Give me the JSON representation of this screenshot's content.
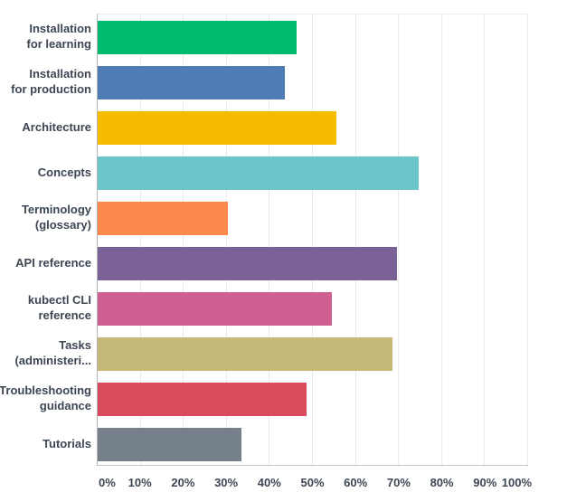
{
  "chart_data": {
    "type": "bar",
    "orientation": "horizontal",
    "title": "",
    "xlabel": "",
    "ylabel": "",
    "categories": [
      "Installation\nfor learning",
      "Installation\nfor production",
      "Architecture",
      "Concepts",
      "Terminology\n(glossary)",
      "API reference",
      "kubectl CLI\nreference",
      "Tasks\n(administeri...",
      "Troubleshooting\nguidance",
      "Tutorials"
    ],
    "values": [
      46.3,
      43.5,
      55.5,
      74.5,
      30.3,
      69.5,
      54.5,
      68.5,
      48.5,
      33.3
    ],
    "colors": [
      "#00bb6e",
      "#4f7db3",
      "#f6bd00",
      "#6ac6c9",
      "#fc8a4d",
      "#7a6296",
      "#ce5f90",
      "#c6b878",
      "#d94a5c",
      "#75808b"
    ],
    "x_ticks": [
      "0%",
      "10%",
      "20%",
      "30%",
      "40%",
      "50%",
      "60%",
      "70%",
      "80%",
      "90%",
      "100%"
    ],
    "xlim": [
      0,
      100
    ],
    "grid": "vertical",
    "legend": "none",
    "value_unit": "%",
    "background_color": "#ffffff",
    "label_text_color": "#3d4653",
    "axis_line_color": "#b3b7bb",
    "gridline_color": "#e9eaec"
  }
}
